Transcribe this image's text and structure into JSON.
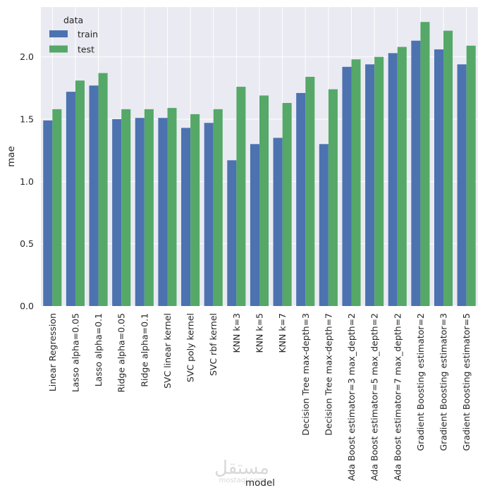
{
  "chart_data": {
    "type": "bar",
    "xlabel": "model",
    "ylabel": "mae",
    "ylim": [
      0,
      2.4
    ],
    "yticks": [
      "0.0",
      "0.5",
      "1.0",
      "1.5",
      "2.0"
    ],
    "grid": true,
    "legend": {
      "title": "data",
      "placement": "top-left",
      "entries": [
        "train",
        "test"
      ]
    },
    "categories": [
      "Linear Regression",
      "Lasso alpha=0.05",
      "Lasso alpha=0.1",
      "Ridge alpha=0.05",
      "Ridge alpha=0.1",
      "SVC linear kernel",
      "SVC poly kernel",
      "SVC rbf kernel",
      "KNN k=3",
      "KNN k=5",
      "KNN k=7",
      "Decision Tree max-depth=3",
      "Decision Tree max-depth=7",
      "Ada Boost estimator=3 max_depth=2",
      "Ada Boost estimator=5 max_depth=2",
      "Ada Boost estimator=7 max_depth=2",
      "Gradient Boosting estimator=2",
      "Gradient Boosting estimator=3",
      "Gradient Boosting estimator=5"
    ],
    "series": [
      {
        "name": "train",
        "color": "#4c72b0",
        "values": [
          1.49,
          1.72,
          1.77,
          1.5,
          1.51,
          1.51,
          1.43,
          1.47,
          1.17,
          1.3,
          1.35,
          1.71,
          1.3,
          1.92,
          1.94,
          2.03,
          2.13,
          2.06,
          1.94
        ]
      },
      {
        "name": "test",
        "color": "#55a868",
        "values": [
          1.58,
          1.81,
          1.87,
          1.58,
          1.58,
          1.59,
          1.54,
          1.58,
          1.76,
          1.69,
          1.63,
          1.84,
          1.74,
          1.98,
          2.0,
          2.08,
          2.28,
          2.21,
          2.09
        ]
      }
    ]
  },
  "watermark": {
    "text": "مستقل",
    "subtext": "mostaql.com"
  }
}
